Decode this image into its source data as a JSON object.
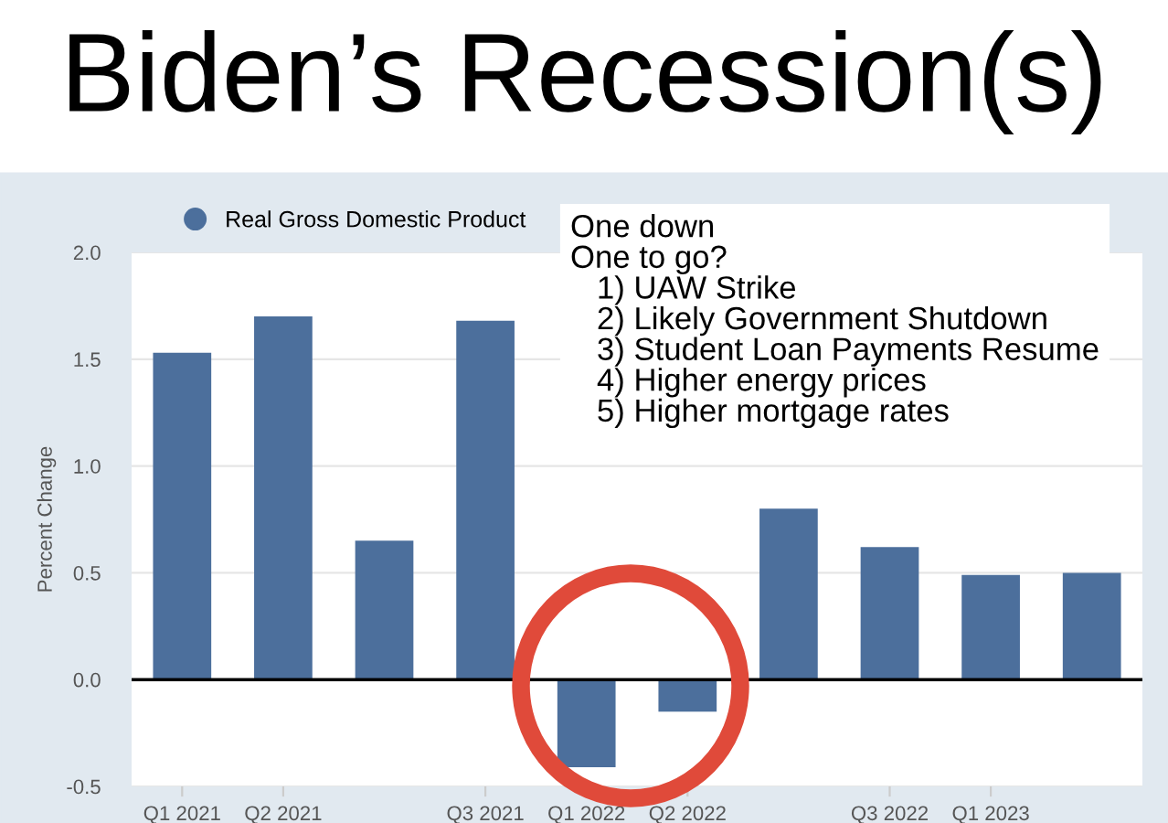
{
  "chart_data": {
    "type": "bar",
    "title": "Biden’s Recession(s)",
    "ylabel": "Percent Change",
    "categories": [
      "Q1 2021",
      "Q2 2021",
      null,
      "Q3 2021",
      "Q1 2022",
      "Q2 2022",
      null,
      "Q3 2022",
      "Q1 2023",
      null
    ],
    "series": [
      {
        "name": "Real Gross Domestic Product",
        "color": "#4c6f9c",
        "values": [
          1.53,
          1.7,
          0.65,
          1.68,
          -0.41,
          -0.15,
          0.8,
          0.62,
          0.49,
          0.5
        ]
      }
    ],
    "ylim": [
      -0.5,
      2.0
    ],
    "yticks": [
      {
        "value": -0.5,
        "label": "-0.5"
      },
      {
        "value": 0,
        "label": "0.0"
      },
      {
        "value": 0.5,
        "label": "0.5"
      },
      {
        "value": 1.0,
        "label": "1.0"
      },
      {
        "value": 1.5,
        "label": "1.5"
      },
      {
        "value": 2.0,
        "label": "2.0"
      }
    ],
    "grid": "y",
    "legend": "top left",
    "annotations": [
      "One down\nOne to go?\n   1) UAW Strike\n   2) Likely Government Shutdown\n   3) Student Loan Payments Resume\n   4) Higher energy prices\n   5) Higher mortgage rates"
    ]
  }
}
